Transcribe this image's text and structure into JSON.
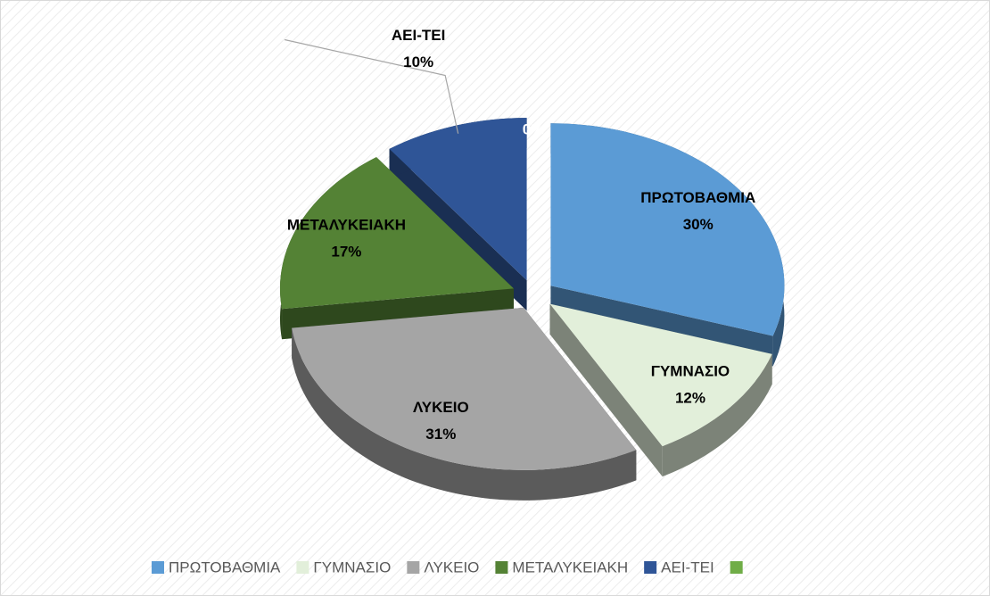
{
  "chart_data": {
    "type": "pie3d",
    "categories": [
      "ΠΡΩΤΟΒΑΘΜΙΑ",
      "ΓΥΜΝΑΣΙΟ",
      "ΛΥΚΕΙΟ",
      "ΜΕΤΑΛΥΚΕΙΑΚΗ",
      "ΑΕΙ-ΤΕΙ",
      null
    ],
    "values": [
      30,
      12,
      31,
      17,
      10,
      0
    ],
    "value_labels": [
      "30%",
      "12%",
      "31%",
      "17%",
      "10%",
      "0%"
    ],
    "colors": [
      "#5b9bd5",
      "#e2efda",
      "#a5a5a5",
      "#548235",
      "#2f5597",
      "#70ad47"
    ],
    "legend": "bottom"
  }
}
